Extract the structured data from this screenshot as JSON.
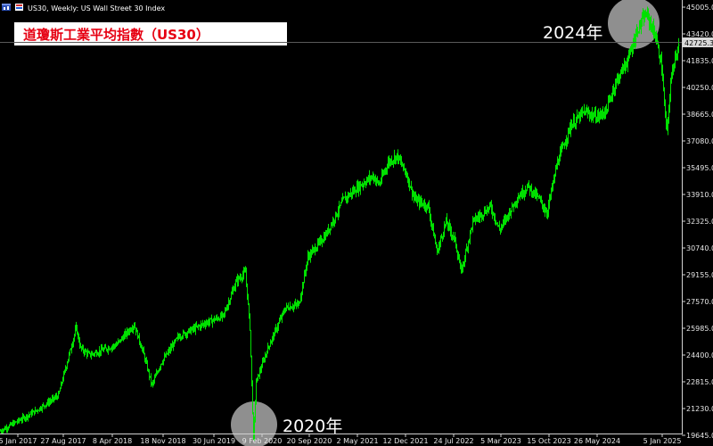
{
  "header": {
    "symbol_info": "US30, Weekly:  US Wall Street 30 Index"
  },
  "title": "道瓊斯工業平均指數（US30）",
  "colors": {
    "background": "#000000",
    "bar": "#00e000",
    "axis_text": "#e6e6e6",
    "title_text": "#e60012",
    "title_box": "#ffffff",
    "last_price_box": "#d9d9d9"
  },
  "icons": [
    "chart-window-icon"
  ],
  "chart_data": {
    "type": "ohlc",
    "title": "道瓊斯工業平均指數（US30）",
    "timeframe": "Weekly",
    "x_tick_labels": [
      "5 Jan 2017",
      "27 Aug 2017",
      "8 Apr 2018",
      "18 Nov 2018",
      "30 Jun 2019",
      "9 Feb 2020",
      "20 Sep 2020",
      "2 May 2021",
      "12 Dec 2021",
      "24 Jul 2022",
      "5 Mar 2023",
      "15 Oct 2023",
      "26 May 2024",
      "5 Jan 2025"
    ],
    "y_tick_labels": [
      "45005.0",
      "43420.0",
      "41835.0",
      "40250.0",
      "38665.0",
      "37080.0",
      "35495.0",
      "33910.0",
      "32325.0",
      "30740.0",
      "29155.0",
      "27570.0",
      "25985.0",
      "24400.0",
      "22815.0",
      "21230.0",
      "19645.0"
    ],
    "ylim": [
      18500,
      45500
    ],
    "last_price": "42725.3",
    "approx_path": [
      [
        "5 Jan 2017",
        19900
      ],
      [
        "27 Aug 2017",
        21900
      ],
      [
        "Jan 2018",
        26200
      ],
      [
        "8 Apr 2018",
        24300
      ],
      [
        "Oct 2018",
        26600
      ],
      [
        "Dec 2018",
        22500
      ],
      [
        "30 Jun 2019",
        26700
      ],
      [
        "9 Feb 2020",
        29200
      ],
      [
        "Mar 2020",
        19200
      ],
      [
        "20 Sep 2020",
        27800
      ],
      [
        "2 May 2021",
        34200
      ],
      [
        "12 Dec 2021",
        35900
      ],
      [
        "Sep 2022",
        29200
      ],
      [
        "5 Mar 2023",
        33300
      ],
      [
        "15 Oct 2023",
        33000
      ],
      [
        "26 May 2024",
        39000
      ],
      [
        "Dec 2024",
        44600
      ],
      [
        "5 Jan 2025",
        42700
      ],
      [
        "Apr 2025",
        37600
      ],
      [
        "latest",
        42725
      ]
    ],
    "annotations": [
      {
        "text": "2020年",
        "near": "9 Feb 2020 low"
      },
      {
        "text": "2024年",
        "near": "Dec 2024 high"
      }
    ],
    "grid": false,
    "legend": "none"
  }
}
